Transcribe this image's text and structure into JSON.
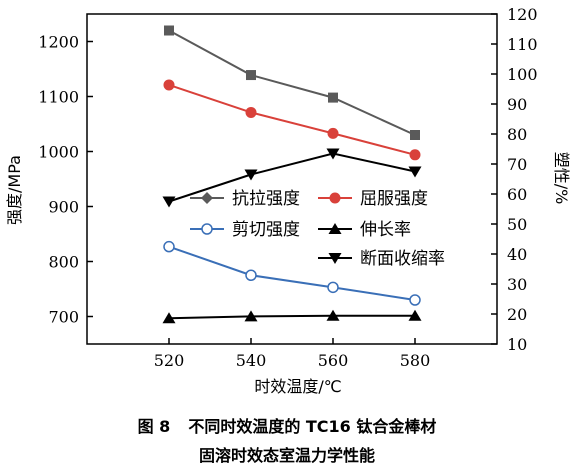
{
  "caption": {
    "figure_no": "图 8",
    "line1": "不同时效温度的 TC16 钛合金棒材",
    "line2": "固溶时效态室温力学性能"
  },
  "chart_data": {
    "type": "line",
    "title": "",
    "xlabel": "时效温度/℃",
    "ylabel_left": "强度/MPa",
    "ylabel_right": "塑性/%",
    "x": [
      520,
      540,
      560,
      580
    ],
    "xlim": [
      500,
      600
    ],
    "xticks": [
      520,
      540,
      560,
      580
    ],
    "ylim_left": [
      650,
      1250
    ],
    "yticks_left": [
      700,
      800,
      900,
      1000,
      1100,
      1200
    ],
    "ylim_right": [
      10,
      120
    ],
    "yticks_right": [
      10,
      20,
      30,
      40,
      50,
      60,
      70,
      80,
      90,
      100,
      110,
      120
    ],
    "grid": false,
    "legend_placement": "center-right",
    "series": [
      {
        "name": "抗拉强度",
        "axis": "left",
        "marker": "square",
        "legend_marker": "diamond",
        "color": "#5a5a5a",
        "values": [
          1220,
          1139,
          1098,
          1030
        ]
      },
      {
        "name": "屈服强度",
        "axis": "left",
        "marker": "circle",
        "color": "#d9413a",
        "values": [
          1121,
          1071,
          1033,
          994
        ]
      },
      {
        "name": "剪切强度",
        "axis": "left",
        "marker": "open-circle",
        "color": "#3a6fb7",
        "values": [
          827,
          775,
          753,
          730
        ]
      },
      {
        "name": "伸长率",
        "axis": "right",
        "marker": "triangle-up",
        "color": "#000000",
        "values": [
          18.6,
          19.2,
          19.4,
          19.4
        ]
      },
      {
        "name": "断面收缩率",
        "axis": "right",
        "marker": "triangle-down",
        "color": "#000000",
        "values": [
          57.5,
          66.5,
          73.5,
          67.5
        ]
      }
    ]
  }
}
